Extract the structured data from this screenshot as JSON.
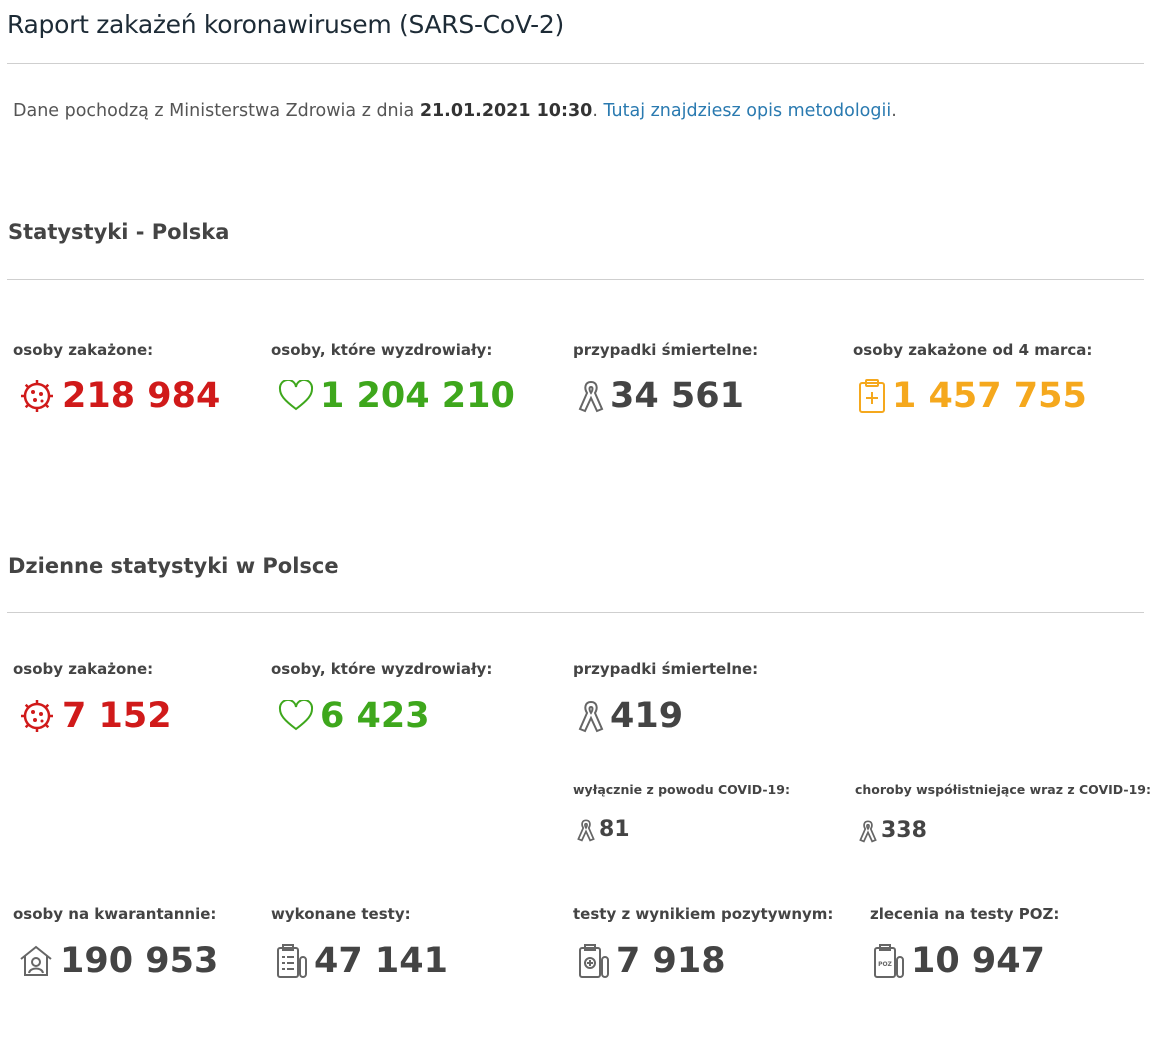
{
  "header": {
    "title": "Raport zakażeń koronawirusem (SARS-CoV-2)"
  },
  "intro": {
    "text": "Dane pochodzą z Ministerstwa Zdrowia z dnia",
    "date": "21.01.2021 10:30",
    "after_date": ".",
    "link": "Tutaj znajdziesz opis metodologii",
    "end": "."
  },
  "totals": {
    "heading": "Statystyki - Polska",
    "items": [
      {
        "label": "osoby zakażone:",
        "value": "218 984"
      },
      {
        "label": "osoby, które wyzdrowiały:",
        "value": "1 204 210"
      },
      {
        "label": "przypadki śmiertelne:",
        "value": "34 561"
      },
      {
        "label": "osoby zakażone od 4 marca:",
        "value": "1 457 755"
      }
    ]
  },
  "daily": {
    "heading": "Dzienne statystyki w Polsce",
    "items": [
      {
        "label": "osoby zakażone:",
        "value": "7 152"
      },
      {
        "label": "osoby, które wyzdrowiały:",
        "value": "6 423"
      },
      {
        "label": "przypadki śmiertelne:",
        "value": "419"
      }
    ],
    "deaths_breakdown": [
      {
        "label": "wyłącznie z powodu COVID-19:",
        "value": "81"
      },
      {
        "label": "choroby współistniejące wraz z COVID-19:",
        "value": "338"
      }
    ],
    "other": [
      {
        "label": "osoby na kwarantannie:",
        "value": "190 953"
      },
      {
        "label": "wykonane testy:",
        "value": "47 141"
      },
      {
        "label": "testy z wynikiem pozytywnym:",
        "value": "7 918"
      },
      {
        "label": "zlecenia na testy POZ:",
        "value": "10 947"
      }
    ]
  }
}
